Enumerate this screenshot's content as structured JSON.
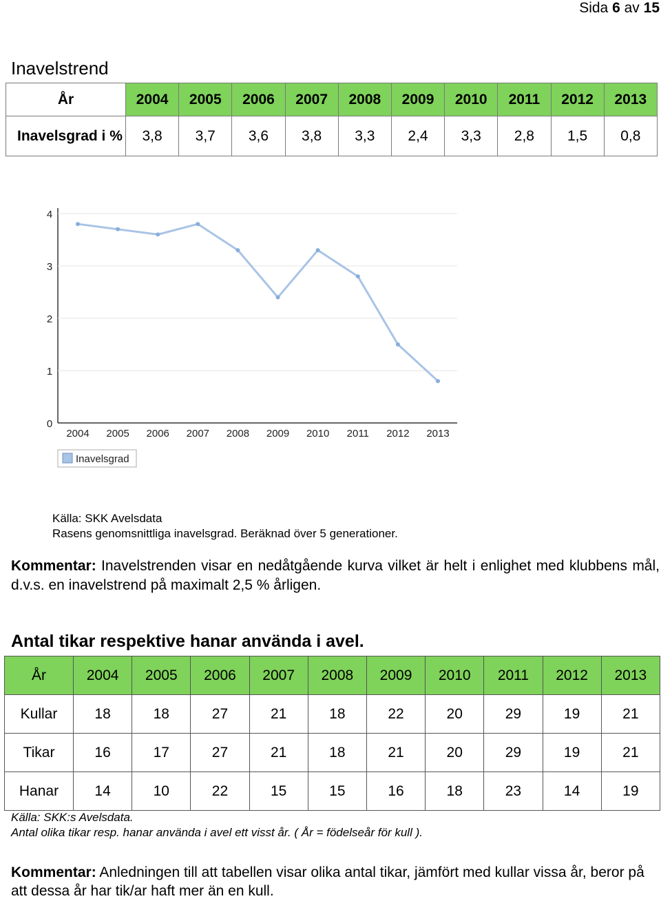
{
  "header": {
    "page_prefix": "Sida",
    "page_current": "6",
    "page_sep": "av",
    "page_total": "15"
  },
  "section1": {
    "title": "Inavelstrend",
    "table": {
      "year_label": "År",
      "row_label": "Inavelsgrad i %",
      "years": [
        "2004",
        "2005",
        "2006",
        "2007",
        "2008",
        "2009",
        "2010",
        "2011",
        "2012",
        "2013"
      ],
      "values": [
        "3,8",
        "3,7",
        "3,6",
        "3,8",
        "3,3",
        "2,4",
        "3,3",
        "2,8",
        "1,5",
        "0,8"
      ]
    },
    "source_line1": "Källa: SKK Avelsdata",
    "source_line2": "Rasens genomsnittliga inavelsgrad. Beräknad över 5 generationer.",
    "comment_label": "Kommentar:",
    "comment_text": " Inavelstrenden visar en nedåtgående kurva vilket är helt i enlighet med klubbens mål, d.v.s. en inavelstrend på maximalt 2,5 % årligen."
  },
  "chart_data": {
    "type": "line",
    "x": [
      "2004",
      "2005",
      "2006",
      "2007",
      "2008",
      "2009",
      "2010",
      "2011",
      "2012",
      "2013"
    ],
    "series": [
      {
        "name": "Inavelsgrad",
        "values": [
          3.8,
          3.7,
          3.6,
          3.8,
          3.3,
          2.4,
          3.3,
          2.8,
          1.5,
          0.8
        ]
      }
    ],
    "yticks": [
      "0",
      "1",
      "2",
      "3",
      "4"
    ],
    "ylim": [
      0,
      4
    ],
    "grid": true,
    "legend": "bottom-left",
    "line_color": "#a8c4e6",
    "marker_color": "#88aedc"
  },
  "section2": {
    "title": "Antal tikar respektive hanar använda i avel.",
    "table": {
      "year_label": "År",
      "years": [
        "2004",
        "2005",
        "2006",
        "2007",
        "2008",
        "2009",
        "2010",
        "2011",
        "2012",
        "2013"
      ],
      "rows": [
        {
          "label": "Kullar",
          "values": [
            "18",
            "18",
            "27",
            "21",
            "18",
            "22",
            "20",
            "29",
            "19",
            "21"
          ]
        },
        {
          "label": "Tikar",
          "values": [
            "16",
            "17",
            "27",
            "21",
            "18",
            "21",
            "20",
            "29",
            "19",
            "21"
          ]
        },
        {
          "label": "Hanar",
          "values": [
            "14",
            "10",
            "22",
            "15",
            "15",
            "16",
            "18",
            "23",
            "14",
            "19"
          ]
        }
      ]
    },
    "source_line1": "Källa: SKK:s Avelsdata.",
    "source_line2": "Antal olika tikar resp. hanar använda i avel ett visst år. ( År = födelseår för kull ).",
    "comment_label": "Kommentar:",
    "comment_text": " Anledningen till att tabellen visar olika antal tikar, jämfört med kullar vissa år, beror på att dessa år har tik/ar haft mer än en kull."
  }
}
